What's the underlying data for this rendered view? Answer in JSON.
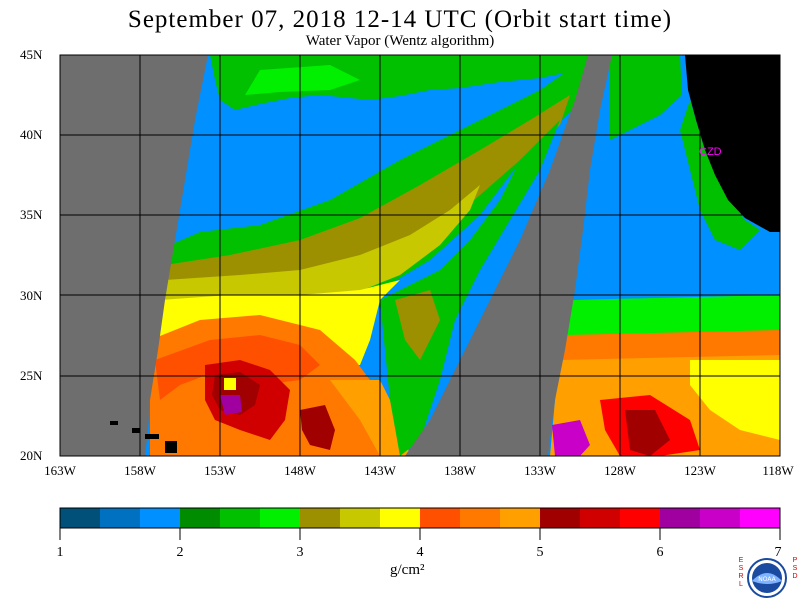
{
  "title": "September 07, 2018  12-14 UTC  (Orbit start time)",
  "subtitle": "Water Vapor (Wentz algorithm)",
  "lat_labels": [
    "45N",
    "40N",
    "35N",
    "30N",
    "25N",
    "20N"
  ],
  "lat_values": [
    45,
    40,
    35,
    30,
    25,
    20
  ],
  "lon_labels": [
    "163W",
    "158W",
    "153W",
    "148W",
    "143W",
    "138W",
    "133W",
    "128W",
    "123W",
    "118W"
  ],
  "lon_values": [
    -163,
    -158,
    -153,
    -148,
    -143,
    -138,
    -133,
    -128,
    -123,
    -118
  ],
  "city_label": "CZD",
  "colorbar": {
    "ticks": [
      "1",
      "2",
      "3",
      "4",
      "5",
      "6",
      "7"
    ],
    "units": "g/cm²",
    "colors": [
      "#00507a",
      "#0070c0",
      "#0090ff",
      "#008c00",
      "#00c000",
      "#00f000",
      "#9c9000",
      "#c8c800",
      "#ffff00",
      "#ff5000",
      "#ff7800",
      "#ffa000",
      "#a00000",
      "#d00000",
      "#ff0000",
      "#a000a0",
      "#c800c8",
      "#ff00ff"
    ]
  },
  "legend_colors": {
    "no_data": "#6e6e6e",
    "land": "#000000"
  },
  "logo": {
    "left_letters": "ESRL",
    "right_letters": "PSD",
    "center": "NOAA"
  }
}
